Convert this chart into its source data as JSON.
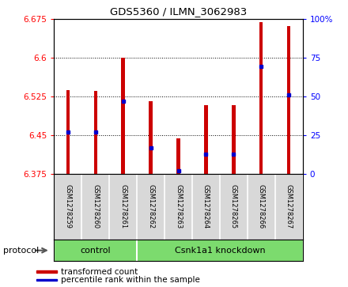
{
  "title": "GDS5360 / ILMN_3062983",
  "samples": [
    "GSM1278259",
    "GSM1278260",
    "GSM1278261",
    "GSM1278262",
    "GSM1278263",
    "GSM1278264",
    "GSM1278265",
    "GSM1278266",
    "GSM1278267"
  ],
  "bar_tops": [
    6.537,
    6.535,
    6.6,
    6.515,
    6.443,
    6.507,
    6.507,
    6.668,
    6.66
  ],
  "bar_bottoms": [
    6.375,
    6.375,
    6.375,
    6.375,
    6.375,
    6.375,
    6.375,
    6.375,
    6.375
  ],
  "percentile_vals": [
    6.455,
    6.455,
    6.515,
    6.425,
    6.381,
    6.413,
    6.413,
    6.582,
    6.527
  ],
  "ylim_left": [
    6.375,
    6.675
  ],
  "ylim_right": [
    0,
    100
  ],
  "yticks_left": [
    6.375,
    6.45,
    6.525,
    6.6,
    6.675
  ],
  "yticks_right": [
    0,
    25,
    50,
    75,
    100
  ],
  "bar_color": "#cc0000",
  "percentile_color": "#0000cc",
  "protocol_groups": [
    {
      "label": "control",
      "start": 0,
      "end": 3
    },
    {
      "label": "Csnk1a1 knockdown",
      "start": 3,
      "end": 9
    }
  ],
  "protocol_label": "protocol",
  "legend_items": [
    {
      "label": "transformed count",
      "color": "#cc0000"
    },
    {
      "label": "percentile rank within the sample",
      "color": "#0000cc"
    }
  ],
  "col_bg": "#d8d8d8",
  "plot_bg": "#ffffff",
  "group_green": "#7cdb6e",
  "bar_width": 0.12
}
